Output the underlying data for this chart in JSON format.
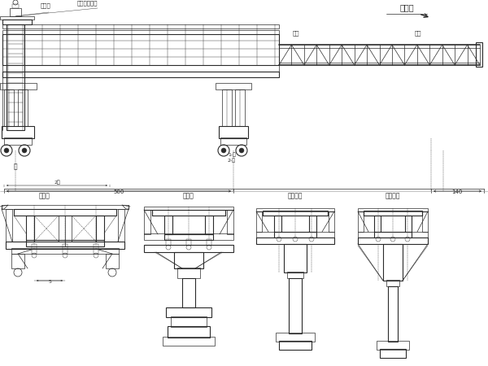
{
  "bg_color": "#ffffff",
  "line_color": "#2a2a2a",
  "title_text": "施工向",
  "labels_top": [
    "端模板",
    "吸、前移挂架",
    "権板",
    "権板"
  ],
  "labels_pier": [
    "墓",
    "1-墓",
    "2-桦"
  ],
  "labels_cross": [
    "端截面",
    "过渡面",
    "中部截面",
    "端部截面"
  ],
  "dim_labels": [
    "2距",
    "500",
    "140"
  ]
}
